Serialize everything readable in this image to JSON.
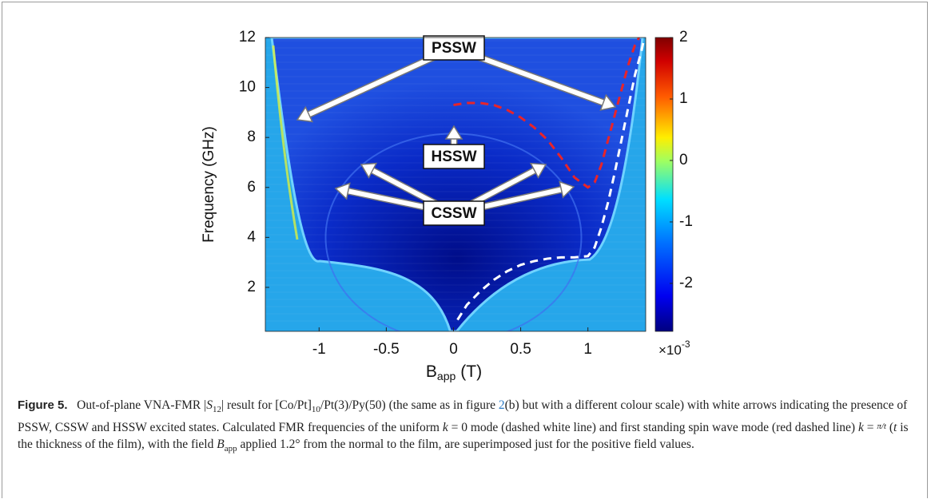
{
  "chart_data": {
    "type": "heatmap",
    "ylabel": "Frequency (GHz)",
    "xlabel": {
      "base": "B",
      "sub": "app",
      "unit": "(T)"
    },
    "xlim": [
      -1.4,
      1.43
    ],
    "xticks": [
      -1,
      -0.5,
      0,
      0.5,
      1
    ],
    "ylim": [
      0.24,
      12
    ],
    "yticks": [
      2,
      4,
      6,
      8,
      10,
      12
    ],
    "colorbar": {
      "lim": [
        -2.78,
        2
      ],
      "ticks": [
        -2,
        -1,
        0,
        1,
        2
      ],
      "multiplier": "×10",
      "exponent": "-3"
    },
    "annotations": [
      "PSSW",
      "HSSW",
      "CSSW"
    ],
    "series": [
      {
        "color": "#ffffff",
        "x": [
          0.03,
          0.1,
          0.2,
          0.3,
          0.4,
          0.5,
          0.6,
          0.7,
          0.8,
          0.9,
          1.0,
          1.05,
          1.1,
          1.15,
          1.2,
          1.25,
          1.3,
          1.35,
          1.4,
          1.42
        ],
        "values": [
          0.7,
          1.3,
          1.85,
          2.3,
          2.65,
          2.9,
          3.05,
          3.15,
          3.2,
          3.2,
          3.25,
          3.6,
          4.4,
          5.4,
          6.6,
          7.9,
          9.2,
          10.5,
          11.5,
          12
        ]
      },
      {
        "color": "#e8242a",
        "x": [
          0,
          0.1,
          0.2,
          0.3,
          0.4,
          0.5,
          0.6,
          0.7,
          0.8,
          0.9,
          1.0,
          1.05,
          1.1,
          1.15,
          1.2,
          1.25,
          1.3,
          1.35,
          1.38
        ],
        "values": [
          9.3,
          9.38,
          9.38,
          9.3,
          9.1,
          8.8,
          8.4,
          7.9,
          7.2,
          6.4,
          6.0,
          6.2,
          6.9,
          7.9,
          8.9,
          9.9,
          10.9,
          11.7,
          12
        ]
      }
    ]
  },
  "caption": {
    "label": "Figure 5.",
    "runs": [
      {
        "text": "Out-of-plane VNA-FMR |",
        "style": "normal"
      },
      {
        "text": "S",
        "style": "italic"
      },
      {
        "text": "12",
        "style": "sub"
      },
      {
        "text": "| result for [Co/Pt]",
        "style": "normal"
      },
      {
        "text": "10",
        "style": "sub"
      },
      {
        "text": "/Pt(3)/Py(50) (the same as in figure ",
        "style": "normal"
      },
      {
        "text": "2",
        "style": "link"
      },
      {
        "text": "(b) but with a different colour scale) with white arrows indicating the presence of PSSW, CSSW and HSSW excited states. Calculated FMR frequencies of the uniform ",
        "style": "normal"
      },
      {
        "text": "k",
        "style": "italic"
      },
      {
        "text": " = 0 mode (dashed white line) and first standing spin wave mode (red dashed line) ",
        "style": "normal"
      },
      {
        "text": "k",
        "style": "italic"
      },
      {
        "text": " = ",
        "style": "normal"
      },
      {
        "text": "π/t",
        "style": "frac"
      },
      {
        "text": " (",
        "style": "normal"
      },
      {
        "text": "t",
        "style": "italic"
      },
      {
        "text": " is the thickness of the film), with the field ",
        "style": "normal"
      },
      {
        "text": "B",
        "style": "italic"
      },
      {
        "text": "app",
        "style": "sub"
      },
      {
        "text": " applied 1.2° from the normal to the film, are superimposed just for the positive field values.",
        "style": "normal"
      }
    ]
  }
}
